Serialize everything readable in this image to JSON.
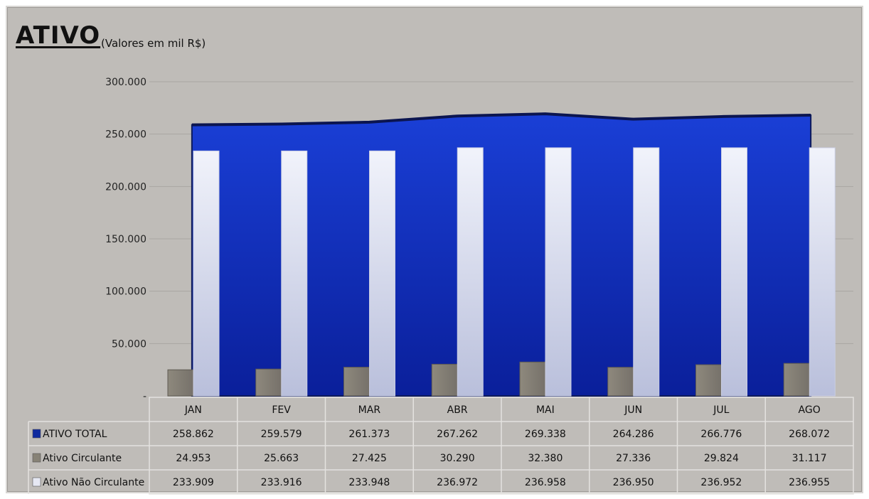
{
  "header": {
    "title": "ATIVO",
    "subtitle": "(Valores em mil R$)"
  },
  "chart_data": {
    "type": "bar",
    "title": "ATIVO",
    "subtitle": "(Valores em mil R$)",
    "categories": [
      "JAN",
      "FEV",
      "MAR",
      "ABR",
      "MAI",
      "JUN",
      "JUL",
      "AGO"
    ],
    "ylim": [
      0,
      300000
    ],
    "yticks": [
      {
        "value": 0,
        "label": "-"
      },
      {
        "value": 50000,
        "label": "50.000"
      },
      {
        "value": 100000,
        "label": "100.000"
      },
      {
        "value": 150000,
        "label": "150.000"
      },
      {
        "value": 200000,
        "label": "200.000"
      },
      {
        "value": 250000,
        "label": "250.000"
      },
      {
        "value": 300000,
        "label": "300.000"
      }
    ],
    "grid": true,
    "legend": "data-table",
    "series": [
      {
        "name": "ATIVO TOTAL",
        "render": "area",
        "color": "#1530b0",
        "values": [
          258862,
          259579,
          261373,
          267262,
          269338,
          264286,
          266776,
          268072
        ],
        "labels": [
          "258.862",
          "259.579",
          "261.373",
          "267.262",
          "269.338",
          "264.286",
          "266.776",
          "268.072"
        ]
      },
      {
        "name": "Ativo Circulante",
        "render": "bar",
        "color": "#878276",
        "values": [
          24953,
          25663,
          27425,
          30290,
          32380,
          27336,
          29824,
          31117
        ],
        "labels": [
          "24.953",
          "25.663",
          "27.425",
          "30.290",
          "32.380",
          "27.336",
          "29.824",
          "31.117"
        ]
      },
      {
        "name": "Ativo Não Circulante",
        "render": "bar",
        "color": "#dfe3f2",
        "values": [
          233909,
          233916,
          233948,
          236972,
          236958,
          236950,
          236952,
          236955
        ],
        "labels": [
          "233.909",
          "233.916",
          "233.948",
          "236.972",
          "236.958",
          "236.950",
          "236.952",
          "236.955"
        ]
      }
    ]
  }
}
